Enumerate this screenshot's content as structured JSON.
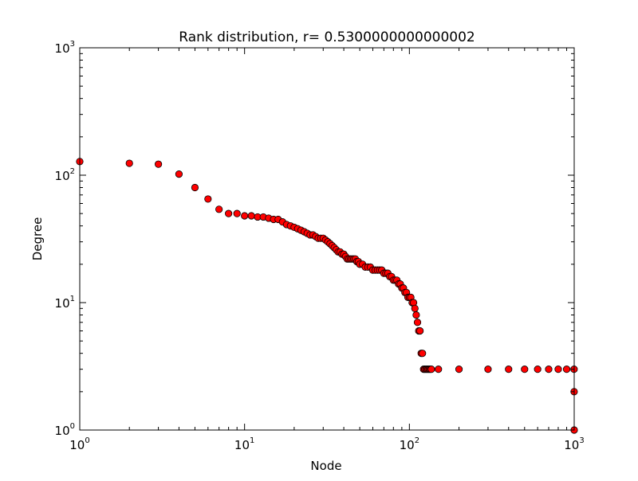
{
  "chart_data": {
    "type": "scatter",
    "title": "Rank distribution, r= 0.5300000000000002",
    "xlabel": "Node",
    "ylabel": "Degree",
    "xscale": "log",
    "yscale": "log",
    "xlim": [
      1,
      1000
    ],
    "ylim": [
      1,
      1000
    ],
    "x_ticks": [
      {
        "base": "10",
        "exp": "0"
      },
      {
        "base": "10",
        "exp": "1"
      },
      {
        "base": "10",
        "exp": "2"
      },
      {
        "base": "10",
        "exp": "3"
      }
    ],
    "y_ticks": [
      {
        "base": "10",
        "exp": "0"
      },
      {
        "base": "10",
        "exp": "1"
      },
      {
        "base": "10",
        "exp": "2"
      },
      {
        "base": "10",
        "exp": "3"
      }
    ],
    "grid": false,
    "marker_color": "#ff0000",
    "marker_edge_color": "#000000",
    "series": [
      {
        "x": [
          1,
          2,
          3,
          4,
          5,
          6,
          7,
          8,
          9,
          10,
          11,
          12,
          13,
          14,
          15,
          16,
          17,
          18,
          19,
          20,
          21,
          22,
          23,
          24,
          25,
          26,
          27,
          28,
          29,
          30,
          31,
          32,
          33,
          34,
          35,
          36,
          37,
          38,
          39,
          40,
          41,
          42,
          43,
          44,
          45,
          46,
          47,
          48,
          49,
          50,
          52,
          54,
          56,
          58,
          60,
          62,
          64,
          66,
          68,
          70,
          72,
          74,
          76,
          78,
          80,
          82,
          84,
          86,
          88,
          90,
          92,
          94,
          96,
          98,
          100,
          102,
          104,
          106,
          108,
          110,
          112,
          114,
          116,
          118,
          120,
          122,
          124,
          126,
          128,
          130,
          132,
          134,
          136,
          150,
          200,
          300,
          400,
          500,
          600,
          700,
          800,
          900,
          998,
          999,
          1000
        ],
        "y": [
          128,
          124,
          122,
          102,
          80,
          65,
          54,
          50,
          50,
          48,
          48,
          47,
          47,
          46,
          45,
          45,
          43,
          41,
          40,
          39,
          38,
          37,
          36,
          35,
          34,
          34,
          33,
          32,
          32,
          32,
          31,
          30,
          29,
          28,
          27,
          26,
          25,
          25,
          24,
          24,
          23,
          22,
          22,
          22,
          22,
          22,
          22,
          21,
          21,
          20,
          20,
          19,
          19,
          19,
          18,
          18,
          18,
          18,
          18,
          17,
          17,
          17,
          16,
          16,
          15,
          15,
          15,
          14,
          14,
          13,
          13,
          12,
          12,
          11,
          11,
          11,
          10,
          10,
          9,
          8,
          7,
          6,
          6,
          4,
          4,
          3,
          3,
          3,
          3,
          3,
          3,
          3,
          3,
          3,
          3,
          3,
          3,
          3,
          3,
          3,
          3,
          3,
          3,
          2,
          1
        ]
      }
    ]
  }
}
